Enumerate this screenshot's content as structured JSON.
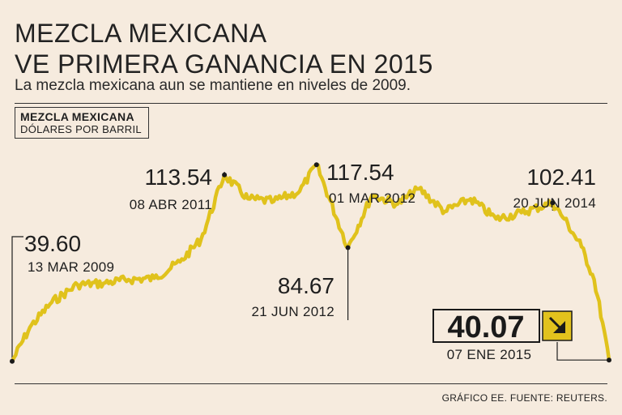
{
  "header": {
    "title_line1": "MEZCLA MEXICANA",
    "title_line2": "VE PRIMERA GANANCIA EN 2015",
    "subtitle": "La mezcla mexicana aun se mantiene en niveles de 2009."
  },
  "legend": {
    "series_name": "MEZCLA MEXICANA",
    "unit": "DÓLARES POR BARRIL"
  },
  "footer": {
    "credit": "GRÁFICO EE. FUENTE: REUTERS."
  },
  "colors": {
    "line": "#e0c21c",
    "background": "#f6ebde",
    "arrow_box": "#e2c21d"
  },
  "arrow_icon": "arrow-down-right-icon",
  "chart_data": {
    "type": "line",
    "title": "MEZCLA MEXICANA",
    "ylabel": "DÓLARES POR BARRIL",
    "xlabel": "",
    "xlim": [
      "2009-03-13",
      "2015-01-07"
    ],
    "ylim": [
      35,
      125
    ],
    "grid": false,
    "series": [
      {
        "name": "Mezcla mexicana",
        "x": [
          "2009-03-13",
          "2009-05-15",
          "2009-08-01",
          "2009-11-01",
          "2010-02-01",
          "2010-05-01",
          "2010-08-01",
          "2010-11-01",
          "2011-01-15",
          "2011-04-08",
          "2011-07-01",
          "2011-10-01",
          "2012-01-01",
          "2012-03-01",
          "2012-06-21",
          "2012-09-15",
          "2012-12-15",
          "2013-03-01",
          "2013-06-01",
          "2013-09-01",
          "2013-12-01",
          "2014-03-01",
          "2014-06-20",
          "2014-08-01",
          "2014-10-01",
          "2014-11-15",
          "2014-12-15",
          "2015-01-07"
        ],
        "values": [
          39.6,
          53.0,
          63.0,
          70.0,
          70.5,
          72.0,
          72.5,
          79.0,
          88.0,
          113.54,
          104.0,
          103.0,
          107.0,
          117.54,
          84.67,
          105.5,
          102.0,
          108.0,
          99.0,
          104.0,
          96.0,
          98.5,
          102.41,
          96.0,
          85.0,
          72.0,
          55.0,
          40.07
        ]
      }
    ],
    "annotations": [
      {
        "value": "39.60",
        "date": "13 MAR 2009"
      },
      {
        "value": "113.54",
        "date": "08 ABR 2011"
      },
      {
        "value": "117.54",
        "date": "01 MAR 2012"
      },
      {
        "value": "84.67",
        "date": "21 JUN 2012"
      },
      {
        "value": "102.41",
        "date": "20 JUN 2014"
      },
      {
        "value": "40.07",
        "date": "07 ENE 2015"
      }
    ]
  }
}
